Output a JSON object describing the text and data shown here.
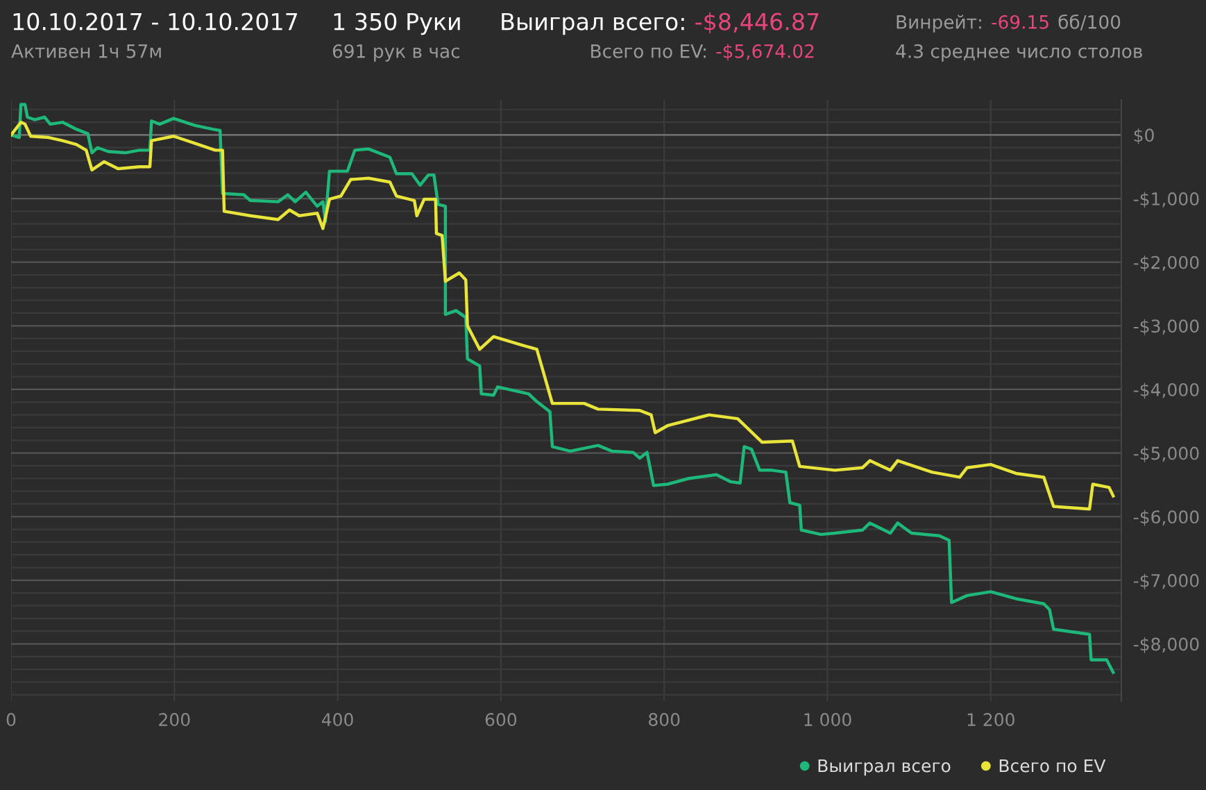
{
  "chart_data": {
    "type": "line",
    "title": "10.10.2017 - 10.10.2017",
    "subtitle": "Активен 1ч 57м",
    "annotations": [
      "1 350 Руки",
      "691 рук в час",
      "Выиграл всего:",
      "-$8,446.87",
      "Всего по EV:",
      "-$5,674.02",
      "Винрейт:",
      "-69.15",
      "бб/100",
      "4.3 среднее число столов"
    ],
    "xlim": [
      0,
      1360
    ],
    "ylim": [
      -8900,
      550
    ],
    "xticks": [
      0,
      200,
      400,
      600,
      800,
      {
        "value": 1000,
        "label": "1 000"
      },
      {
        "value": 1200,
        "label": "1 200"
      }
    ],
    "yticks": [
      {
        "value": 400,
        "label": null
      },
      {
        "value": 200,
        "label": null
      },
      {
        "value": 0,
        "label": "$0"
      },
      {
        "value": -200,
        "label": null
      },
      {
        "value": -400,
        "label": null
      },
      {
        "value": -600,
        "label": null
      },
      {
        "value": -800,
        "label": null
      },
      {
        "value": -1000,
        "label": "-$1,000"
      },
      {
        "value": -1200,
        "label": null
      },
      {
        "value": -1400,
        "label": null
      },
      {
        "value": -1600,
        "label": null
      },
      {
        "value": -1800,
        "label": null
      },
      {
        "value": -2000,
        "label": "-$2,000"
      },
      {
        "value": -2200,
        "label": null
      },
      {
        "value": -2400,
        "label": null
      },
      {
        "value": -2600,
        "label": null
      },
      {
        "value": -2800,
        "label": null
      },
      {
        "value": -3000,
        "label": "-$3,000"
      },
      {
        "value": -3200,
        "label": null
      },
      {
        "value": -3400,
        "label": null
      },
      {
        "value": -3600,
        "label": null
      },
      {
        "value": -3800,
        "label": null
      },
      {
        "value": -4000,
        "label": "-$4,000"
      },
      {
        "value": -4200,
        "label": null
      },
      {
        "value": -4400,
        "label": null
      },
      {
        "value": -4600,
        "label": null
      },
      {
        "value": -4800,
        "label": null
      },
      {
        "value": -5000,
        "label": "-$5,000"
      },
      {
        "value": -5200,
        "label": null
      },
      {
        "value": -5400,
        "label": null
      },
      {
        "value": -5600,
        "label": null
      },
      {
        "value": -5800,
        "label": null
      },
      {
        "value": -6000,
        "label": "-$6,000"
      },
      {
        "value": -6200,
        "label": null
      },
      {
        "value": -6400,
        "label": null
      },
      {
        "value": -6600,
        "label": null
      },
      {
        "value": -6800,
        "label": null
      },
      {
        "value": -7000,
        "label": "-$7,000"
      },
      {
        "value": -7200,
        "label": null
      },
      {
        "value": -7400,
        "label": null
      },
      {
        "value": -7600,
        "label": null
      },
      {
        "value": -7800,
        "label": null
      },
      {
        "value": -8000,
        "label": "-$8,000"
      },
      {
        "value": -8200,
        "label": null
      },
      {
        "value": -8400,
        "label": null
      },
      {
        "value": -8600,
        "label": null
      },
      {
        "value": -8800,
        "label": null
      }
    ],
    "grid": true,
    "legend": "bottom right",
    "marker": "none",
    "line_style": "solid",
    "series": [
      {
        "name": "Выиграл всего",
        "color": "#1db87a",
        "x": [
          0,
          10,
          12,
          17,
          20,
          29,
          41,
          48,
          63,
          80,
          94,
          99,
          106,
          119,
          140,
          157,
          170,
          172,
          182,
          199,
          225,
          247,
          256,
          259,
          285,
          293,
          327,
          339,
          348,
          361,
          375,
          382,
          385,
          390,
          412,
          421,
          438,
          464,
          472,
          491,
          501,
          511,
          518,
          523,
          532,
          532,
          545,
          557,
          559,
          574,
          576,
          591,
          596,
          634,
          643,
          660,
          663,
          685,
          719,
          736,
          762,
          770,
          779,
          787,
          804,
          830,
          864,
          881,
          893,
          898,
          907,
          917,
          932,
          949,
          954,
          966,
          968,
          992,
          1009,
          1043,
          1052,
          1077,
          1086,
          1103,
          1137,
          1149,
          1152,
          1171,
          1200,
          1231,
          1265,
          1272,
          1277,
          1321,
          1323,
          1342,
          1350
        ],
        "values": [
          0,
          -40,
          480,
          480,
          280,
          240,
          280,
          170,
          200,
          90,
          20,
          -280,
          -200,
          -260,
          -280,
          -240,
          -240,
          220,
          170,
          260,
          150,
          90,
          70,
          -920,
          -940,
          -1030,
          -1050,
          -940,
          -1050,
          -900,
          -1120,
          -1050,
          -1360,
          -570,
          -570,
          -240,
          -220,
          -350,
          -610,
          -610,
          -790,
          -630,
          -630,
          -1090,
          -1120,
          -2820,
          -2760,
          -2870,
          -3520,
          -3630,
          -4070,
          -4090,
          -3960,
          -4070,
          -4180,
          -4350,
          -4900,
          -4970,
          -4880,
          -4970,
          -4990,
          -5080,
          -4990,
          -5510,
          -5490,
          -5400,
          -5340,
          -5450,
          -5470,
          -4900,
          -4940,
          -5270,
          -5270,
          -5300,
          -5780,
          -5820,
          -6210,
          -6280,
          -6260,
          -6210,
          -6100,
          -6260,
          -6100,
          -6260,
          -6300,
          -6370,
          -7350,
          -7240,
          -7180,
          -7290,
          -7370,
          -7460,
          -7770,
          -7850,
          -8250,
          -8250,
          -8447
        ]
      },
      {
        "name": "Всего по EV",
        "color": "#e8e43a",
        "x": [
          0,
          12,
          17,
          24,
          46,
          63,
          80,
          92,
          99,
          114,
          131,
          157,
          170,
          172,
          199,
          225,
          250,
          259,
          261,
          293,
          327,
          341,
          353,
          375,
          382,
          390,
          404,
          416,
          438,
          464,
          472,
          494,
          497,
          506,
          520,
          521,
          528,
          532,
          549,
          557,
          559,
          574,
          591,
          625,
          644,
          663,
          702,
          719,
          770,
          784,
          789,
          804,
          855,
          890,
          920,
          957,
          966,
          1009,
          1043,
          1052,
          1077,
          1086,
          1128,
          1162,
          1171,
          1200,
          1231,
          1265,
          1277,
          1321,
          1325,
          1345,
          1350
        ],
        "values": [
          0,
          200,
          170,
          -20,
          -40,
          -90,
          -150,
          -240,
          -550,
          -420,
          -530,
          -500,
          -500,
          -90,
          -20,
          -130,
          -240,
          -240,
          -1200,
          -1270,
          -1330,
          -1180,
          -1270,
          -1230,
          -1470,
          -1010,
          -960,
          -700,
          -680,
          -740,
          -960,
          -1030,
          -1270,
          -1010,
          -1010,
          -1550,
          -1580,
          -2300,
          -2170,
          -2280,
          -3000,
          -3370,
          -3170,
          -3300,
          -3370,
          -4220,
          -4220,
          -4310,
          -4330,
          -4400,
          -4680,
          -4570,
          -4400,
          -4460,
          -4830,
          -4810,
          -5210,
          -5270,
          -5230,
          -5120,
          -5270,
          -5120,
          -5300,
          -5380,
          -5230,
          -5180,
          -5320,
          -5380,
          -5840,
          -5880,
          -5490,
          -5540,
          -5674
        ]
      }
    ]
  }
}
